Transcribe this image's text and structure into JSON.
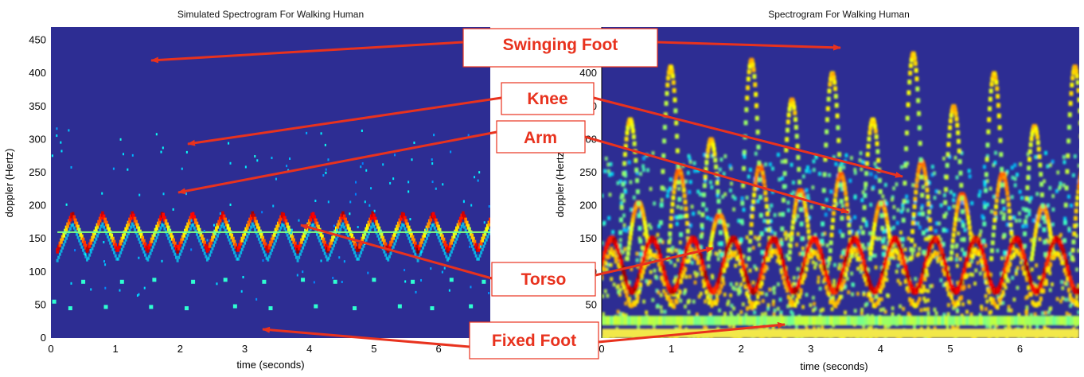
{
  "colors": {
    "background": "#2d2d93",
    "annotation": "#e8321e",
    "torso_band": "#f0d020",
    "fixed_foot_band": "#f2e84a"
  },
  "chart_data": [
    {
      "type": "heatmap",
      "title": "Simulated Spectrogram For Walking Human",
      "xlabel": "time (seconds)",
      "ylabel": "doppler (Hertz)",
      "xlim": [
        0,
        6.8
      ],
      "ylim": [
        0,
        470
      ],
      "xticks": [
        0,
        1,
        2,
        3,
        4,
        5,
        6
      ],
      "yticks": [
        0,
        50,
        100,
        150,
        200,
        250,
        300,
        350,
        400,
        450
      ],
      "torso": {
        "center": 160,
        "amplitude": 28,
        "period": 0.465,
        "start": 0.1
      },
      "sparse_dots": [
        [
          0.05,
          55
        ],
        [
          0.3,
          45
        ],
        [
          0.85,
          47
        ],
        [
          1.55,
          47
        ],
        [
          2.1,
          45
        ],
        [
          2.85,
          48
        ],
        [
          3.4,
          45
        ],
        [
          4.1,
          48
        ],
        [
          4.7,
          45
        ],
        [
          5.4,
          48
        ],
        [
          5.9,
          45
        ],
        [
          6.5,
          48
        ],
        [
          0.5,
          85
        ],
        [
          1.1,
          85
        ],
        [
          1.6,
          88
        ],
        [
          2.2,
          85
        ],
        [
          2.7,
          88
        ],
        [
          3.3,
          85
        ],
        [
          3.9,
          88
        ],
        [
          4.4,
          85
        ],
        [
          5.0,
          88
        ],
        [
          5.6,
          85
        ],
        [
          6.2,
          88
        ],
        [
          6.7,
          85
        ]
      ]
    },
    {
      "type": "heatmap",
      "title": "Spectrogram For Walking Human",
      "xlabel": "time (seconds)",
      "ylabel": "doppler (Hertz)",
      "xlim": [
        0,
        6.85
      ],
      "ylim": [
        0,
        470
      ],
      "xticks": [
        0,
        1,
        2,
        3,
        4,
        5,
        6
      ],
      "yticks": [
        0,
        50,
        100,
        150,
        200,
        250,
        300,
        350,
        400
      ],
      "stride_period": 0.58,
      "torso_center": 110,
      "torso_amplitude": 40,
      "peak_heights": [
        330,
        410,
        300,
        420,
        360,
        400,
        330,
        430,
        350,
        400,
        320,
        410
      ]
    }
  ],
  "annotations": [
    {
      "label": "Swinging Foot"
    },
    {
      "label": "Knee"
    },
    {
      "label": "Arm"
    },
    {
      "label": "Torso"
    },
    {
      "label": "Fixed Foot"
    }
  ]
}
